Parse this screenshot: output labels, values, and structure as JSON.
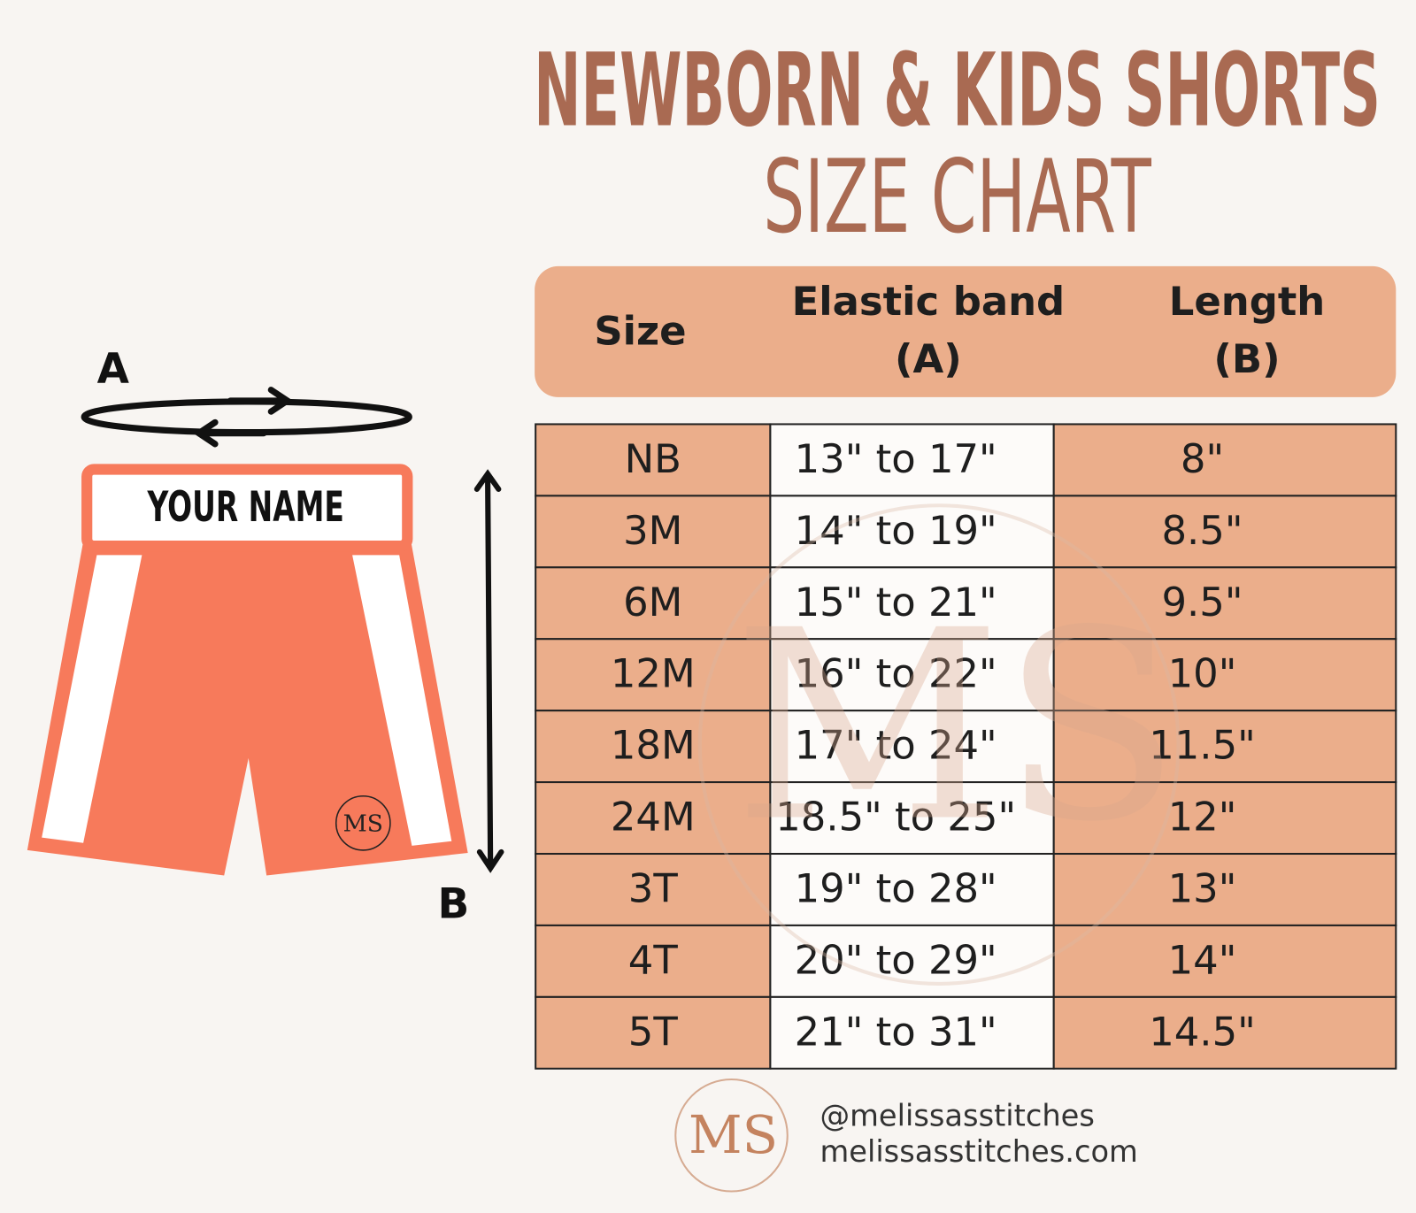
{
  "header": {
    "title_line1": "NEWBORN & KIDS SHORTS",
    "title_line2": "SIZE CHART"
  },
  "diagram": {
    "label_a": "A",
    "label_b": "B",
    "name_text": "YOUR NAME",
    "logo": "MS"
  },
  "watermark": "MS",
  "table": {
    "columns": [
      [
        "Size"
      ],
      [
        "Elastic band",
        "(A)"
      ],
      [
        "Length",
        "(B)"
      ]
    ],
    "rows": [
      [
        "NB",
        "13\" to 17\"",
        "8\""
      ],
      [
        "3M",
        "14\" to 19\"",
        "8.5\""
      ],
      [
        "6M",
        "15\" to 21\"",
        "9.5\""
      ],
      [
        "12M",
        "16\" to 22\"",
        "10\""
      ],
      [
        "18M",
        "17\" to 24\"",
        "11.5\""
      ],
      [
        "24M",
        "18.5\" to 25\"",
        "12\""
      ],
      [
        "3T",
        "19\" to 28\"",
        "13\""
      ],
      [
        "4T",
        "20\" to 29\"",
        "14\""
      ],
      [
        "5T",
        "21\" to 31\"",
        "14.5\""
      ]
    ]
  },
  "footer": {
    "logo": "MS",
    "handle": "@melissasstitches",
    "website": "melissasstitches.com"
  }
}
